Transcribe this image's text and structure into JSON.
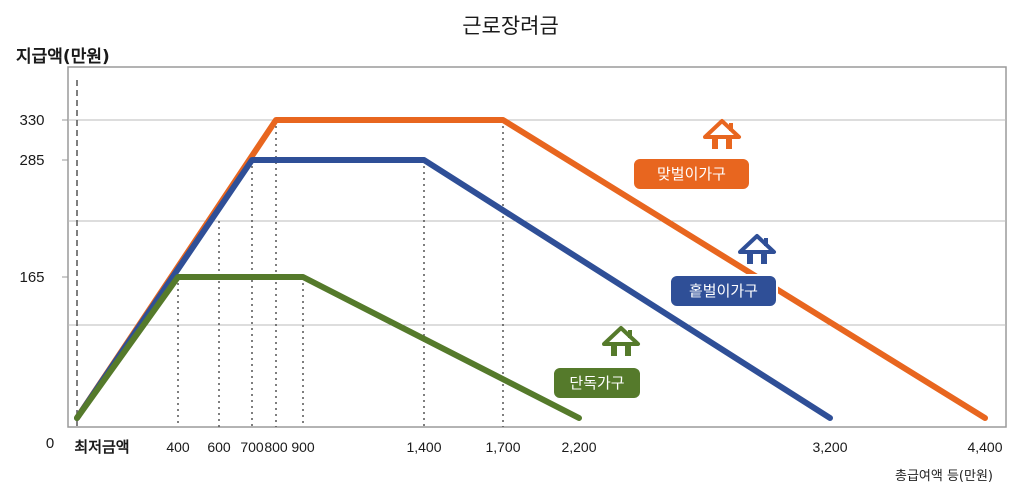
{
  "chart_data": {
    "type": "line",
    "title": "근로장려금",
    "ylabel": "지급액(만원)",
    "xlabel": "총급여액 등(만원)",
    "y_ticks": [
      {
        "value": 0,
        "label": "0"
      },
      {
        "value": 165,
        "label": "165"
      },
      {
        "value": 285,
        "label": "285"
      },
      {
        "value": 330,
        "label": "330"
      }
    ],
    "x_ticks": [
      {
        "value": 0,
        "label": "최저금액"
      },
      {
        "value": 400,
        "label": "400"
      },
      {
        "value": 600,
        "label": "600"
      },
      {
        "value": 700,
        "label": "700"
      },
      {
        "value": 800,
        "label": "800"
      },
      {
        "value": 900,
        "label": "900"
      },
      {
        "value": 1400,
        "label": "1,400"
      },
      {
        "value": 1700,
        "label": "1,700"
      },
      {
        "value": 2200,
        "label": "2,200"
      },
      {
        "value": 3200,
        "label": "3,200"
      },
      {
        "value": 4400,
        "label": "4,400"
      }
    ],
    "series": [
      {
        "name": "맞벌이가구",
        "color": "#e8661f",
        "x": [
          0,
          800,
          1700,
          4400
        ],
        "y": [
          0,
          330,
          330,
          0
        ]
      },
      {
        "name": "홑벌이가구",
        "color": "#2f4f97",
        "x": [
          0,
          700,
          1400,
          3200
        ],
        "y": [
          0,
          285,
          285,
          0
        ]
      },
      {
        "name": "단독가구",
        "color": "#557a2b",
        "x": [
          0,
          400,
          900,
          2200
        ],
        "y": [
          0,
          165,
          165,
          0
        ]
      }
    ]
  }
}
